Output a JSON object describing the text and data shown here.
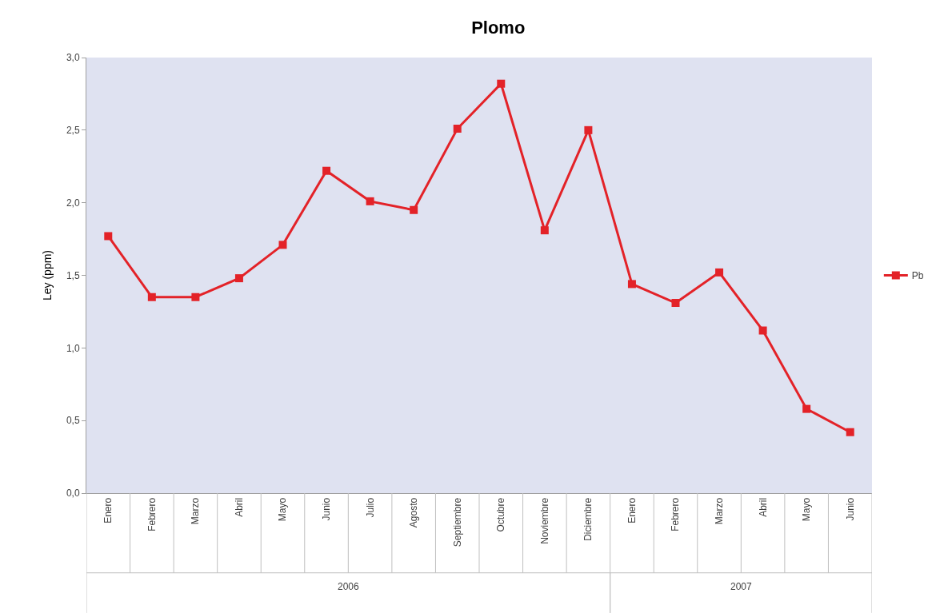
{
  "chart_data": {
    "type": "line",
    "title": "Plomo",
    "ylabel": "Ley (ppm)",
    "categories": [
      "Enero",
      "Febrero",
      "Marzo",
      "Abril",
      "Mayo",
      "Junio",
      "Julio",
      "Agosto",
      "Septiembre",
      "Octubre",
      "Noviembre",
      "Diciembre",
      "Enero",
      "Febrero",
      "Marzo",
      "Abril",
      "Mayo",
      "Junio"
    ],
    "series": [
      {
        "name": "Pb",
        "color": "#e32228",
        "values": [
          1.77,
          1.35,
          1.35,
          1.48,
          1.71,
          2.22,
          2.01,
          1.95,
          2.51,
          2.82,
          1.81,
          2.5,
          1.44,
          1.31,
          1.52,
          1.12,
          0.58,
          0.42
        ]
      }
    ],
    "ylim": [
      0,
      3
    ],
    "yticks": [
      {
        "value": 0,
        "label": "0,0"
      },
      {
        "value": 0.5,
        "label": "0,5"
      },
      {
        "value": 1,
        "label": "1,0"
      },
      {
        "value": 1.5,
        "label": "1,5"
      },
      {
        "value": 2,
        "label": "2,0"
      },
      {
        "value": 2.5,
        "label": "2,5"
      },
      {
        "value": 3,
        "label": "3,0"
      }
    ],
    "annotations": [
      "2006",
      "2007"
    ],
    "grid": false,
    "legend": "right",
    "marker": "square",
    "line_style": "solid"
  }
}
